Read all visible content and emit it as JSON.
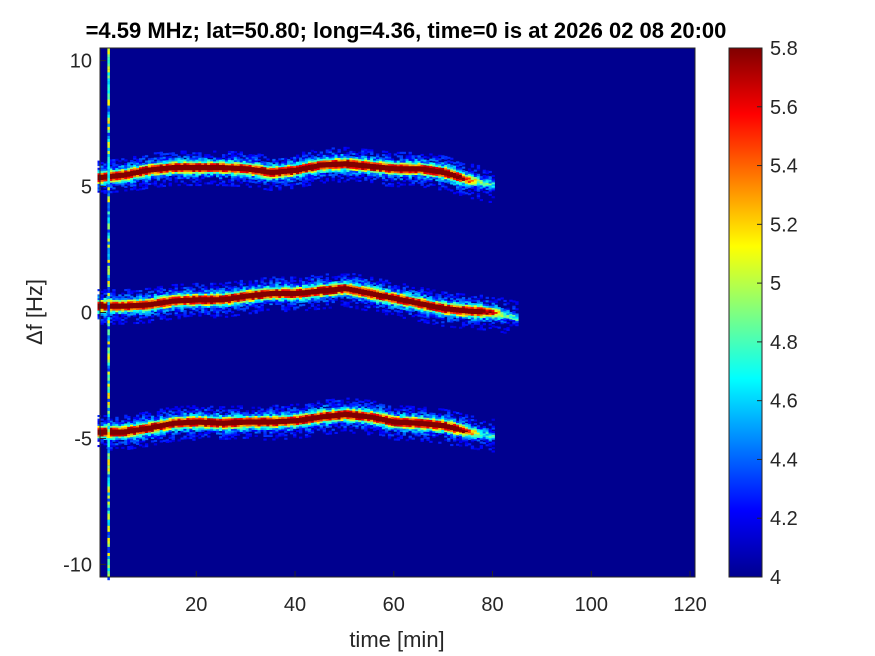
{
  "chart_data": {
    "type": "heatmap",
    "title": "=4.59 MHz;  lat=50.80; long=4.36, time=0 is at 2026 02 08 20:00",
    "xlabel": "time [min]",
    "ylabel": "Δf [Hz]",
    "xlim": [
      0.5,
      121
    ],
    "ylim": [
      -10.5,
      10.5
    ],
    "x_ticks": [
      20,
      40,
      60,
      80,
      100,
      120
    ],
    "y_ticks": [
      -10,
      -5,
      0,
      5,
      10
    ],
    "x_tick_labels": [
      "20",
      "40",
      "60",
      "80",
      "100",
      "120"
    ],
    "y_tick_labels": [
      "-10",
      "-5",
      "0",
      "5",
      "10"
    ],
    "colorbar": {
      "min": 4,
      "max": 5.8,
      "ticks": [
        4,
        4.2,
        4.4,
        4.6,
        4.8,
        5,
        5.2,
        5.4,
        5.6,
        5.8
      ],
      "tick_labels": [
        "4",
        "4.2",
        "4.4",
        "4.6",
        "4.8",
        "5",
        "5.2",
        "5.4",
        "5.6",
        "5.8"
      ],
      "colormap": "jet"
    },
    "background_level": 4.0,
    "series": [
      {
        "t": [
          0,
          5,
          10,
          15,
          20,
          25,
          30,
          35,
          40,
          45,
          50,
          55,
          60,
          65,
          70,
          75,
          80
        ],
        "df": [
          5.4,
          5.5,
          5.7,
          5.8,
          5.8,
          5.8,
          5.75,
          5.6,
          5.7,
          5.9,
          5.95,
          5.85,
          5.75,
          5.75,
          5.6,
          5.3,
          5.1
        ]
      },
      {
        "t": [
          0,
          5,
          10,
          15,
          20,
          25,
          30,
          35,
          40,
          45,
          50,
          55,
          60,
          65,
          70,
          75,
          80,
          85
        ],
        "df": [
          0.3,
          0.3,
          0.35,
          0.5,
          0.55,
          0.55,
          0.7,
          0.8,
          0.8,
          0.9,
          1.0,
          0.8,
          0.6,
          0.4,
          0.2,
          0.1,
          0.05,
          -0.2
        ]
      },
      {
        "t": [
          0,
          5,
          10,
          15,
          20,
          25,
          30,
          35,
          40,
          45,
          50,
          55,
          60,
          65,
          70,
          75,
          80
        ],
        "df": [
          -4.7,
          -4.7,
          -4.55,
          -4.35,
          -4.3,
          -4.35,
          -4.3,
          -4.3,
          -4.25,
          -4.1,
          -4.0,
          -4.1,
          -4.3,
          -4.35,
          -4.45,
          -4.7,
          -4.85
        ]
      }
    ],
    "vertical_stripe_t": 2
  }
}
